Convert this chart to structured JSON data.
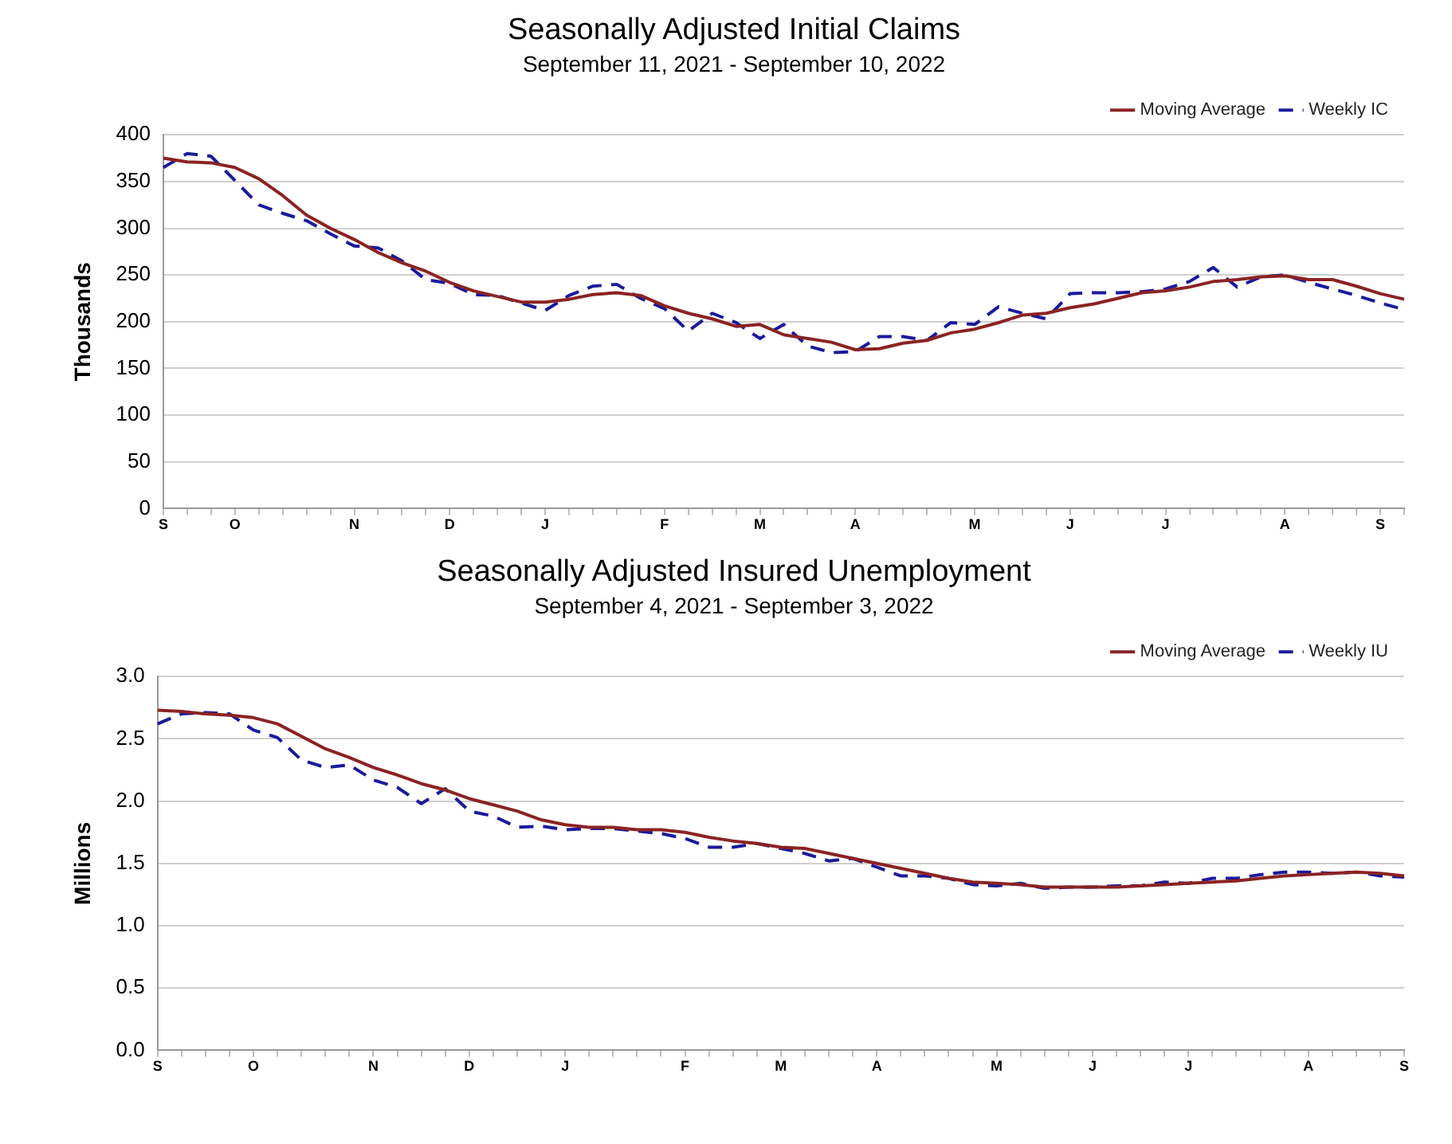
{
  "chart_data": [
    {
      "type": "line",
      "title": "Seasonally Adjusted Initial Claims",
      "subtitle": "September 11, 2021 - September 10, 2022",
      "ylabel": "Thousands",
      "categories": [
        "S",
        null,
        null,
        "O",
        null,
        null,
        null,
        null,
        "N",
        null,
        null,
        null,
        "D",
        null,
        null,
        null,
        "J",
        null,
        null,
        null,
        null,
        "F",
        null,
        null,
        null,
        "M",
        null,
        null,
        null,
        "A",
        null,
        null,
        null,
        null,
        "M",
        null,
        null,
        null,
        "J",
        null,
        null,
        null,
        "J",
        null,
        null,
        null,
        null,
        "A",
        null,
        null,
        null,
        "S",
        null
      ],
      "series": [
        {
          "name": "Moving Average",
          "color": "#8b2323",
          "line_style": "solid",
          "values": [
            375,
            371,
            370,
            365,
            353,
            335,
            314,
            300,
            288,
            274,
            263,
            254,
            242,
            233,
            227,
            221,
            221,
            224,
            229,
            231,
            228,
            217,
            209,
            203,
            195,
            197,
            186,
            182,
            178,
            170,
            171,
            177,
            180,
            188,
            192,
            199,
            207,
            209,
            215,
            219,
            225,
            231,
            233,
            237,
            243,
            245,
            248,
            249,
            245,
            245,
            238,
            230,
            224
          ]
        },
        {
          "name": "Weekly IC",
          "color": "#1a1a9c",
          "line_style": "dashed",
          "values": [
            365,
            380,
            377,
            351,
            325,
            316,
            308,
            294,
            281,
            279,
            265,
            245,
            241,
            229,
            228,
            220,
            212,
            228,
            238,
            240,
            225,
            214,
            190,
            209,
            199,
            182,
            197,
            174,
            167,
            168,
            184,
            184,
            180,
            199,
            197,
            216,
            209,
            203,
            230,
            231,
            231,
            232,
            235,
            243,
            258,
            237,
            248,
            250,
            242,
            235,
            228,
            220,
            213
          ]
        }
      ],
      "ylim": [
        0,
        400
      ],
      "yticks": [
        0,
        50,
        100,
        150,
        200,
        250,
        300,
        350,
        400
      ],
      "grid": "y",
      "legend": "top right",
      "marker": "none"
    },
    {
      "type": "line",
      "title": "Seasonally Adjusted Insured Unemployment",
      "subtitle": "September 4, 2021 - September 3, 2022",
      "ylabel": "Millions",
      "categories": [
        "S",
        null,
        null,
        null,
        "O",
        null,
        null,
        null,
        null,
        "N",
        null,
        null,
        null,
        "D",
        null,
        null,
        null,
        "J",
        null,
        null,
        null,
        null,
        "F",
        null,
        null,
        null,
        "M",
        null,
        null,
        null,
        "A",
        null,
        null,
        null,
        null,
        "M",
        null,
        null,
        null,
        "J",
        null,
        null,
        null,
        "J",
        null,
        null,
        null,
        null,
        "A",
        null,
        null,
        null,
        "S"
      ],
      "series": [
        {
          "name": "Moving Average",
          "color": "#8b2323",
          "line_style": "solid",
          "values": [
            2.73,
            2.72,
            2.7,
            2.69,
            2.67,
            2.62,
            2.52,
            2.42,
            2.35,
            2.27,
            2.21,
            2.14,
            2.09,
            2.02,
            1.97,
            1.92,
            1.85,
            1.81,
            1.79,
            1.79,
            1.77,
            1.77,
            1.75,
            1.71,
            1.68,
            1.66,
            1.63,
            1.62,
            1.58,
            1.54,
            1.5,
            1.46,
            1.42,
            1.38,
            1.35,
            1.34,
            1.33,
            1.31,
            1.31,
            1.31,
            1.31,
            1.32,
            1.33,
            1.34,
            1.35,
            1.36,
            1.38,
            1.4,
            1.41,
            1.42,
            1.43,
            1.42,
            1.4
          ]
        },
        {
          "name": "Weekly IU",
          "color": "#1a1a9c",
          "line_style": "dashed",
          "values": [
            2.62,
            2.7,
            2.71,
            2.7,
            2.57,
            2.51,
            2.33,
            2.27,
            2.29,
            2.17,
            2.11,
            1.98,
            2.1,
            1.92,
            1.88,
            1.79,
            1.8,
            1.77,
            1.78,
            1.78,
            1.76,
            1.74,
            1.7,
            1.63,
            1.63,
            1.66,
            1.62,
            1.58,
            1.52,
            1.54,
            1.47,
            1.4,
            1.4,
            1.38,
            1.33,
            1.32,
            1.34,
            1.3,
            1.31,
            1.31,
            1.32,
            1.32,
            1.35,
            1.34,
            1.38,
            1.38,
            1.41,
            1.43,
            1.43,
            1.42,
            1.43,
            1.4,
            1.39
          ]
        }
      ],
      "ylim": [
        0,
        3
      ],
      "yticks": [
        {
          "value": 0,
          "label": "0.0"
        },
        {
          "value": 0.5,
          "label": "0.5"
        },
        {
          "value": 1,
          "label": "1.0"
        },
        {
          "value": 1.5,
          "label": "1.5"
        },
        {
          "value": 2,
          "label": "2.0"
        },
        {
          "value": 2.5,
          "label": "2.5"
        },
        {
          "value": 3,
          "label": "3.0"
        }
      ],
      "grid": "y",
      "legend": "top right",
      "marker": "none"
    }
  ]
}
